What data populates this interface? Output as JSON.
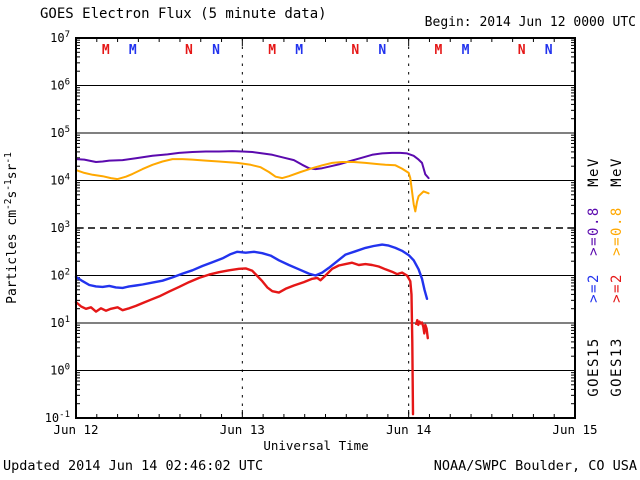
{
  "header": {
    "title": "GOES Electron Flux (5 minute data)",
    "begin_label": "Begin: 2014 Jun 12 0000 UTC"
  },
  "footer": {
    "updated": "Updated 2014 Jun 14 02:46:02 UTC",
    "credit": "NOAA/SWPC Boulder, CO USA"
  },
  "chart_data": {
    "type": "line",
    "title": "GOES Electron Flux (5 minute data)",
    "xlabel": "Universal Time",
    "ylabel": "Particles cm-2s-1sr-1",
    "ylabel_parts": [
      {
        "t": "Particles cm",
        "sup": false
      },
      {
        "t": "-2",
        "sup": true
      },
      {
        "t": "s",
        "sup": false
      },
      {
        "t": "-1",
        "sup": true
      },
      {
        "t": "sr",
        "sup": false
      },
      {
        "t": "-1",
        "sup": true
      }
    ],
    "x_tick_labels": [
      "Jun 12",
      "Jun 13",
      "Jun 14",
      "Jun 15"
    ],
    "x_minor_ticks_per_day": 8,
    "y_log_exponents": [
      7,
      6,
      5,
      4,
      3,
      2,
      1,
      0,
      -1
    ],
    "y_range_log": [
      -1,
      7
    ],
    "solid_gridline_decades": [
      6,
      5,
      4,
      2,
      1,
      0
    ],
    "threshold_decade": 3,
    "day_separators_t": [
      1,
      2
    ],
    "grid": "on",
    "legend_position": "right-rotated",
    "points_format": "[days_since_2014-06-12_0000UTC, log10_flux]",
    "series": [
      {
        "name": "GOES15 >=0.8 MeV",
        "color": "#5b0aae",
        "stroke_width": 2,
        "segments": [
          [
            [
              0.0,
              4.45
            ],
            [
              0.05,
              4.44
            ],
            [
              0.09,
              4.41
            ],
            [
              0.12,
              4.39
            ],
            [
              0.16,
              4.4
            ],
            [
              0.2,
              4.42
            ],
            [
              0.28,
              4.43
            ],
            [
              0.36,
              4.47
            ],
            [
              0.46,
              4.52
            ],
            [
              0.55,
              4.55
            ],
            [
              0.62,
              4.58
            ],
            [
              0.7,
              4.6
            ],
            [
              0.78,
              4.61
            ],
            [
              0.86,
              4.61
            ],
            [
              0.94,
              4.62
            ],
            [
              1.0,
              4.61
            ],
            [
              1.06,
              4.6
            ],
            [
              1.12,
              4.57
            ],
            [
              1.18,
              4.54
            ],
            [
              1.25,
              4.48
            ],
            [
              1.31,
              4.43
            ],
            [
              1.36,
              4.33
            ],
            [
              1.4,
              4.26
            ],
            [
              1.44,
              4.24
            ],
            [
              1.48,
              4.26
            ],
            [
              1.53,
              4.3
            ],
            [
              1.58,
              4.34
            ],
            [
              1.65,
              4.41
            ],
            [
              1.72,
              4.48
            ],
            [
              1.78,
              4.54
            ],
            [
              1.84,
              4.57
            ],
            [
              1.9,
              4.58
            ],
            [
              1.95,
              4.58
            ],
            [
              1.99,
              4.57
            ],
            [
              2.03,
              4.52
            ],
            [
              2.06,
              4.44
            ],
            [
              2.08,
              4.37
            ],
            [
              2.1,
              4.13
            ],
            [
              2.12,
              4.05
            ]
          ]
        ]
      },
      {
        "name": "GOES13 >=0.8 MeV",
        "color": "#ffa800",
        "stroke_width": 2,
        "segments": [
          [
            [
              0.0,
              4.22
            ],
            [
              0.05,
              4.16
            ],
            [
              0.1,
              4.12
            ],
            [
              0.16,
              4.09
            ],
            [
              0.21,
              4.05
            ],
            [
              0.25,
              4.03
            ],
            [
              0.3,
              4.08
            ],
            [
              0.34,
              4.14
            ],
            [
              0.4,
              4.24
            ],
            [
              0.46,
              4.33
            ],
            [
              0.52,
              4.4
            ],
            [
              0.58,
              4.45
            ],
            [
              0.64,
              4.45
            ],
            [
              0.7,
              4.44
            ],
            [
              0.78,
              4.42
            ],
            [
              0.86,
              4.4
            ],
            [
              0.97,
              4.37
            ],
            [
              1.05,
              4.33
            ],
            [
              1.11,
              4.28
            ],
            [
              1.16,
              4.18
            ],
            [
              1.2,
              4.08
            ],
            [
              1.24,
              4.05
            ],
            [
              1.28,
              4.09
            ],
            [
              1.35,
              4.18
            ],
            [
              1.42,
              4.26
            ],
            [
              1.48,
              4.32
            ],
            [
              1.54,
              4.37
            ],
            [
              1.6,
              4.39
            ],
            [
              1.67,
              4.39
            ],
            [
              1.74,
              4.37
            ],
            [
              1.8,
              4.35
            ],
            [
              1.86,
              4.33
            ],
            [
              1.92,
              4.32
            ],
            [
              1.96,
              4.25
            ],
            [
              2.0,
              4.16
            ],
            [
              2.01,
              4.05
            ],
            [
              2.03,
              3.5
            ],
            [
              2.04,
              3.35
            ],
            [
              2.05,
              3.55
            ],
            [
              2.06,
              3.67
            ],
            [
              2.09,
              3.77
            ],
            [
              2.12,
              3.73
            ]
          ]
        ]
      },
      {
        "name": "GOES15 >=2 MeV",
        "color": "#2233ee",
        "stroke_width": 2.4,
        "segments": [
          [
            [
              0.0,
              1.97
            ],
            [
              0.04,
              1.88
            ],
            [
              0.08,
              1.8
            ],
            [
              0.12,
              1.77
            ],
            [
              0.16,
              1.76
            ],
            [
              0.2,
              1.78
            ],
            [
              0.24,
              1.75
            ],
            [
              0.28,
              1.74
            ],
            [
              0.32,
              1.77
            ],
            [
              0.36,
              1.79
            ],
            [
              0.4,
              1.81
            ],
            [
              0.46,
              1.85
            ],
            [
              0.52,
              1.89
            ],
            [
              0.58,
              1.96
            ],
            [
              0.64,
              2.04
            ],
            [
              0.7,
              2.11
            ],
            [
              0.76,
              2.2
            ],
            [
              0.82,
              2.28
            ],
            [
              0.88,
              2.36
            ],
            [
              0.93,
              2.45
            ],
            [
              0.97,
              2.5
            ],
            [
              1.02,
              2.48
            ],
            [
              1.07,
              2.5
            ],
            [
              1.12,
              2.47
            ],
            [
              1.17,
              2.42
            ],
            [
              1.22,
              2.32
            ],
            [
              1.28,
              2.22
            ],
            [
              1.34,
              2.13
            ],
            [
              1.4,
              2.04
            ],
            [
              1.44,
              2.0
            ],
            [
              1.48,
              2.06
            ],
            [
              1.52,
              2.16
            ],
            [
              1.57,
              2.3
            ],
            [
              1.62,
              2.44
            ],
            [
              1.68,
              2.51
            ],
            [
              1.74,
              2.58
            ],
            [
              1.79,
              2.62
            ],
            [
              1.84,
              2.65
            ],
            [
              1.88,
              2.63
            ],
            [
              1.92,
              2.58
            ],
            [
              1.96,
              2.52
            ],
            [
              2.0,
              2.43
            ],
            [
              2.03,
              2.32
            ],
            [
              2.06,
              2.13
            ],
            [
              2.08,
              1.93
            ],
            [
              2.095,
              1.7
            ],
            [
              2.11,
              1.51
            ]
          ]
        ]
      },
      {
        "name": "GOES13 >=2 MeV",
        "color": "#e51717",
        "stroke_width": 2.4,
        "segments": [
          [
            [
              0.0,
              1.44
            ],
            [
              0.03,
              1.35
            ],
            [
              0.06,
              1.3
            ],
            [
              0.09,
              1.33
            ],
            [
              0.12,
              1.24
            ],
            [
              0.15,
              1.31
            ],
            [
              0.18,
              1.26
            ],
            [
              0.21,
              1.3
            ],
            [
              0.25,
              1.33
            ],
            [
              0.28,
              1.27
            ],
            [
              0.32,
              1.31
            ],
            [
              0.36,
              1.36
            ],
            [
              0.4,
              1.42
            ],
            [
              0.45,
              1.49
            ],
            [
              0.5,
              1.56
            ],
            [
              0.56,
              1.66
            ],
            [
              0.62,
              1.76
            ],
            [
              0.68,
              1.86
            ],
            [
              0.74,
              1.95
            ],
            [
              0.8,
              2.02
            ],
            [
              0.86,
              2.07
            ],
            [
              0.92,
              2.11
            ],
            [
              0.98,
              2.14
            ],
            [
              1.02,
              2.15
            ],
            [
              1.06,
              2.1
            ],
            [
              1.09,
              1.99
            ],
            [
              1.12,
              1.88
            ],
            [
              1.15,
              1.75
            ],
            [
              1.18,
              1.67
            ],
            [
              1.22,
              1.64
            ],
            [
              1.26,
              1.72
            ],
            [
              1.31,
              1.79
            ],
            [
              1.37,
              1.86
            ],
            [
              1.42,
              1.93
            ],
            [
              1.45,
              1.95
            ],
            [
              1.47,
              1.9
            ],
            [
              1.5,
              2.0
            ],
            [
              1.54,
              2.14
            ],
            [
              1.58,
              2.21
            ],
            [
              1.62,
              2.24
            ],
            [
              1.66,
              2.27
            ],
            [
              1.7,
              2.22
            ],
            [
              1.74,
              2.24
            ],
            [
              1.78,
              2.22
            ],
            [
              1.82,
              2.19
            ],
            [
              1.86,
              2.13
            ],
            [
              1.9,
              2.08
            ],
            [
              1.93,
              2.03
            ],
            [
              1.96,
              2.06
            ],
            [
              1.99,
              2.0
            ],
            [
              2.01,
              1.88
            ],
            [
              2.017,
              1.6
            ],
            [
              2.022,
              0.6
            ],
            [
              2.026,
              -0.92
            ]
          ],
          [
            [
              2.045,
              0.98
            ],
            [
              2.052,
              1.06
            ],
            [
              2.058,
              0.96
            ],
            [
              2.065,
              1.03
            ],
            [
              2.072,
              0.99
            ],
            [
              2.08,
              1.01
            ],
            [
              2.088,
              0.92
            ],
            [
              2.094,
              0.78
            ],
            [
              2.1,
              0.96
            ],
            [
              2.108,
              0.88
            ],
            [
              2.115,
              0.68
            ]
          ]
        ]
      }
    ],
    "event_markers": {
      "days": [
        0,
        1,
        2
      ],
      "per_day": [
        {
          "text": "M",
          "color": "#e51717",
          "hour": 4.3
        },
        {
          "text": "M",
          "color": "#2233ee",
          "hour": 8.2
        },
        {
          "text": "N",
          "color": "#e51717",
          "hour": 16.3
        },
        {
          "text": "N",
          "color": "#2233ee",
          "hour": 20.2
        }
      ]
    },
    "right_legend_columns": [
      {
        "satellite": "GOES15",
        "items": [
          {
            "text": "GOES15",
            "color": "#000000"
          },
          {
            "text": ">=2",
            "color": "#2233ee"
          },
          {
            "text": ">=0.8",
            "color": "#5b0aae"
          },
          {
            "text": "MeV",
            "color": "#000000"
          }
        ]
      },
      {
        "satellite": "GOES13",
        "items": [
          {
            "text": "GOES13",
            "color": "#000000"
          },
          {
            "text": ">=2",
            "color": "#e51717"
          },
          {
            "text": ">=0.8",
            "color": "#ffa800"
          },
          {
            "text": "MeV",
            "color": "#000000"
          }
        ]
      }
    ]
  }
}
